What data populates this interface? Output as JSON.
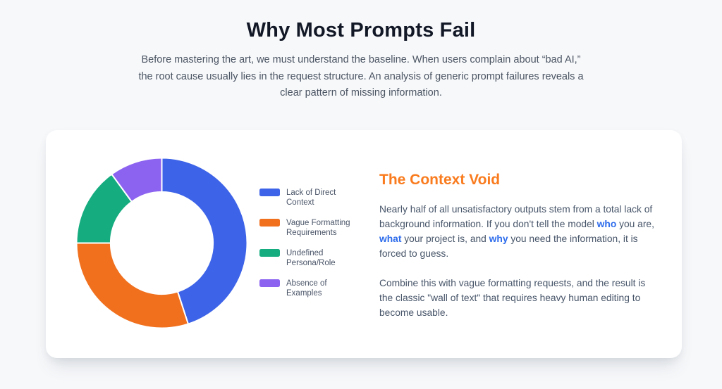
{
  "page": {
    "background": "#f7f8fa",
    "card_background": "#ffffff"
  },
  "header": {
    "title": "Why Most Prompts Fail",
    "subtitle": "Before mastering the art, we must understand the baseline. When users complain about “bad AI,” the root cause usually lies in the request structure. An analysis of generic prompt failures reveals a clear pattern of missing information."
  },
  "card": {
    "heading": "The Context Void",
    "heading_color": "#f97b1e",
    "keyword_color": "#2c6beb",
    "paragraph1": {
      "t1": "Nearly half of all unsatisfactory outputs stem from a total lack of background information. If you don't tell the model ",
      "b1": "who",
      "t2": " you are, ",
      "b2": "what",
      "t3": " your project is, and ",
      "b3": "why",
      "t4": " you need the information, it is forced to guess."
    },
    "paragraph2": "Combine this with vague formatting requests, and the result is the classic \"wall of text\" that requires heavy human editing to become usable."
  },
  "chart_data": {
    "type": "pie",
    "subtype": "donut",
    "title": "",
    "categories": [
      "Lack of Direct Context",
      "Vague Formatting Requirements",
      "Undefined Persona/Role",
      "Absence of Examples"
    ],
    "values": [
      45,
      30,
      15,
      10
    ],
    "unit": "percent",
    "colors": [
      "#3d63e8",
      "#f0701e",
      "#15ac7f",
      "#8c63f0"
    ],
    "border_color": "#ffffff",
    "border_width": 2,
    "cutout_percent": 60,
    "start_angle_deg": 0,
    "direction": "clockwise",
    "legend_position": "right"
  }
}
